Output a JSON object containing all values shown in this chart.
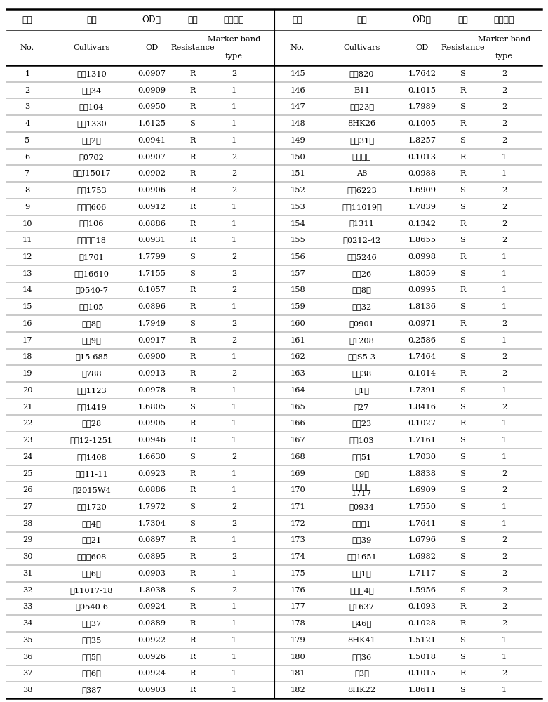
{
  "headers_cn": [
    "序号",
    "品种",
    "OD値",
    "抗性",
    "标记带型"
  ],
  "headers_en_line1": [
    "No.",
    "Cultivars",
    "OD",
    "Resistance",
    "Marker band"
  ],
  "headers_en_line2": [
    "",
    "",
    "",
    "",
    "type"
  ],
  "left_data": [
    [
      "1",
      "商夜1310",
      "0.0907",
      "R",
      "2"
    ],
    [
      "2",
      "齐黄34",
      "0.0909",
      "R",
      "1"
    ],
    [
      "3",
      "汾夜104",
      "0.0950",
      "R",
      "1"
    ],
    [
      "4",
      "洛夜1330",
      "1.6125",
      "S",
      "1"
    ],
    [
      "5",
      "山大2号",
      "0.0941",
      "R",
      "1"
    ],
    [
      "6",
      "儠0702",
      "0.0907",
      "R",
      "2"
    ],
    [
      "7",
      "中作J15017",
      "0.0902",
      "R",
      "2"
    ],
    [
      "8",
      "中夜1753",
      "0.0906",
      "R",
      "2"
    ],
    [
      "9",
      "陇中黄606",
      "0.0912",
      "R",
      "1"
    ],
    [
      "10",
      "中黄106",
      "0.0886",
      "R",
      "1"
    ],
    [
      "11",
      "天益科夜18",
      "0.0931",
      "R",
      "1"
    ],
    [
      "12",
      "儠1701",
      "1.7799",
      "S",
      "2"
    ],
    [
      "13",
      "中品16610",
      "1.7155",
      "S",
      "2"
    ],
    [
      "14",
      "鲁0540-7",
      "0.1057",
      "R",
      "2"
    ],
    [
      "15",
      "汾夜105",
      "0.0896",
      "R",
      "1"
    ],
    [
      "16",
      "冠夜8号",
      "1.7949",
      "S",
      "2"
    ],
    [
      "17",
      "临夜9号",
      "0.0917",
      "R",
      "2"
    ],
    [
      "18",
      "邯15-685",
      "0.0900",
      "R",
      "1"
    ],
    [
      "19",
      "石788",
      "0.0913",
      "R",
      "2"
    ],
    [
      "20",
      "沧夜1123",
      "0.0978",
      "R",
      "1"
    ],
    [
      "21",
      "洛夜1419",
      "1.6805",
      "S",
      "1"
    ],
    [
      "22",
      "山刷28",
      "0.0905",
      "R",
      "1"
    ],
    [
      "23",
      "中作12-1251",
      "0.0946",
      "R",
      "1"
    ],
    [
      "24",
      "洛夜1408",
      "1.6630",
      "S",
      "2"
    ],
    [
      "25",
      "中作11-11",
      "0.0923",
      "R",
      "1"
    ],
    [
      "26",
      "剹2015W4",
      "0.0886",
      "R",
      "1"
    ],
    [
      "27",
      "川夜1720",
      "1.7972",
      "S",
      "2"
    ],
    [
      "28",
      "安夜4号",
      "1.7304",
      "S",
      "2"
    ],
    [
      "29",
      "华夜21",
      "0.0897",
      "R",
      "1"
    ],
    [
      "30",
      "陇中黄608",
      "0.0895",
      "R",
      "2"
    ],
    [
      "31",
      "永氚6号",
      "0.0903",
      "R",
      "1"
    ],
    [
      "32",
      "剹11017-18",
      "1.8038",
      "S",
      "2"
    ],
    [
      "33",
      "鲁0540-6",
      "0.0924",
      "R",
      "1"
    ],
    [
      "34",
      "道秋37",
      "0.0889",
      "R",
      "1"
    ],
    [
      "35",
      "华夜35",
      "0.0922",
      "R",
      "1"
    ],
    [
      "36",
      "圣育5号",
      "0.0926",
      "R",
      "1"
    ],
    [
      "37",
      "道秋6号",
      "0.0924",
      "R",
      "1"
    ],
    [
      "38",
      "石387",
      "0.0903",
      "R",
      "1"
    ]
  ],
  "right_data": [
    [
      "145",
      "濮夜820",
      "1.7642",
      "S",
      "2"
    ],
    [
      "146",
      "B11",
      "0.1015",
      "R",
      "2"
    ],
    [
      "147",
      "科夜23号",
      "1.7989",
      "S",
      "2"
    ],
    [
      "148",
      "8HK26",
      "0.1005",
      "R",
      "2"
    ],
    [
      "149",
      "科夜31号",
      "1.8257",
      "S",
      "2"
    ],
    [
      "150",
      "郑双青夜",
      "0.1013",
      "R",
      "1"
    ],
    [
      "151",
      "A8",
      "0.0988",
      "R",
      "1"
    ],
    [
      "152",
      "安夜6223",
      "1.6909",
      "S",
      "2"
    ],
    [
      "153",
      "周夜11019号",
      "1.7839",
      "S",
      "2"
    ],
    [
      "154",
      "郑1311",
      "0.1342",
      "R",
      "2"
    ],
    [
      "155",
      "冇0212-42",
      "1.8655",
      "S",
      "2"
    ],
    [
      "156",
      "安夜5246",
      "0.0998",
      "R",
      "1"
    ],
    [
      "157",
      "驻夜26",
      "1.8059",
      "S",
      "1"
    ],
    [
      "158",
      "道秋8号",
      "0.0995",
      "R",
      "1"
    ],
    [
      "159",
      "驻夜32",
      "1.8136",
      "S",
      "1"
    ],
    [
      "160",
      "连0901",
      "0.0971",
      "R",
      "2"
    ],
    [
      "161",
      "癴1208",
      "0.2586",
      "S",
      "1"
    ],
    [
      "162",
      "南农S5-3",
      "1.7464",
      "S",
      "2"
    ],
    [
      "163",
      "皖夜38",
      "0.1014",
      "R",
      "2"
    ],
    [
      "164",
      "龙1号",
      "1.7391",
      "S",
      "1"
    ],
    [
      "165",
      "冀27",
      "1.8416",
      "S",
      "2"
    ],
    [
      "166",
      "山刷23",
      "0.1027",
      "R",
      "1"
    ],
    [
      "167",
      "圣夜103",
      "1.7161",
      "S",
      "1"
    ],
    [
      "168",
      "南农51",
      "1.7030",
      "S",
      "1"
    ],
    [
      "169",
      "夠9号",
      "1.8838",
      "S",
      "2"
    ],
    [
      "170",
      "天益科夜\n1717",
      "1.6909",
      "S",
      "2"
    ],
    [
      "171",
      "癴0934",
      "1.7550",
      "S",
      "1"
    ],
    [
      "172",
      "郑药黑1",
      "1.7641",
      "S",
      "1"
    ],
    [
      "173",
      "齐黄39",
      "1.6796",
      "S",
      "2"
    ],
    [
      "174",
      "濮夜1651",
      "1.6982",
      "S",
      "2"
    ],
    [
      "175",
      "茜黑1号",
      "1.7117",
      "S",
      "2"
    ],
    [
      "176",
      "峡晨夜4号",
      "1.5956",
      "S",
      "2"
    ],
    [
      "177",
      "郑1637",
      "0.1093",
      "R",
      "2"
    ],
    [
      "178",
      "开46号",
      "0.1028",
      "R",
      "2"
    ],
    [
      "179",
      "8HK41",
      "1.5121",
      "S",
      "1"
    ],
    [
      "180",
      "华夜36",
      "1.5018",
      "S",
      "1"
    ],
    [
      "181",
      "劉3号",
      "0.1015",
      "R",
      "2"
    ],
    [
      "182",
      "8HK22",
      "1.8611",
      "S",
      "1"
    ]
  ]
}
